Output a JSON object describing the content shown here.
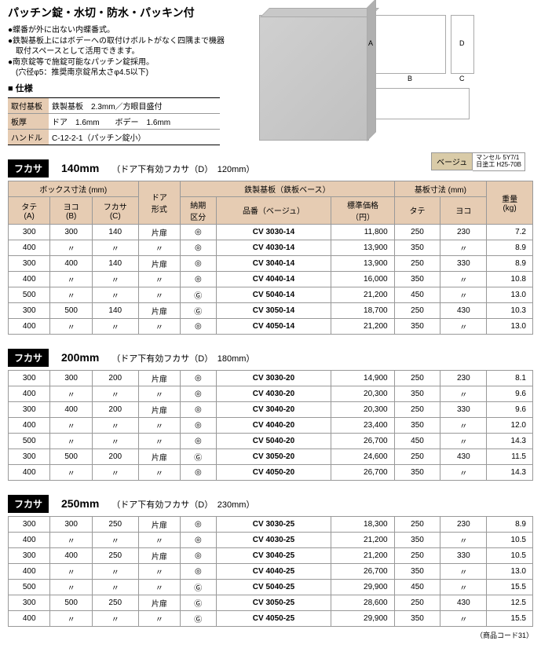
{
  "title": "パッチン錠・水切・防水・パッキン付",
  "bullets": [
    "●蝶番が外に出ない内蝶番式。",
    "●鉄製基板上にはボデーへの取付けボルトがなく四隅まで機器",
    "　取付スペースとして活用できます。",
    "●南京錠等で施錠可能なパッチン錠採用。",
    "　(穴径φ5：推奨南京錠吊太さφ4.5以下)"
  ],
  "shiyou": "■ 仕様",
  "spec_rows": [
    {
      "k": "取付基板",
      "v": "鉄製基板　2.3mm／方眼目盛付"
    },
    {
      "k": "板厚",
      "v": "ドア　1.6mm　　ボデー　1.6mm"
    },
    {
      "k": "ハンドル",
      "v": "C-12-2-1（パッチン錠小）"
    }
  ],
  "dim_labels": {
    "A": "A",
    "B": "B",
    "C": "C",
    "D": "D"
  },
  "beige": {
    "label": "ベージュ",
    "line1": "マンセル 5Y7/1",
    "line2": "日塗工 H25-70B"
  },
  "sections": [
    {
      "chip": "フカサ",
      "mm": "140mm",
      "sub": "（ドア下有効フカサ（D）　120mm）",
      "rows": [
        [
          "300",
          "300",
          "140",
          "片扉",
          "◎",
          "CV 3030-14",
          "11,800",
          "250",
          "230",
          "7.2"
        ],
        [
          "400",
          "〃",
          "〃",
          "〃",
          "◎",
          "CV 4030-14",
          "13,900",
          "350",
          "〃",
          "8.9"
        ],
        [
          "300",
          "400",
          "140",
          "片扉",
          "◎",
          "CV 3040-14",
          "13,900",
          "250",
          "330",
          "8.9"
        ],
        [
          "400",
          "〃",
          "〃",
          "〃",
          "◎",
          "CV 4040-14",
          "16,000",
          "350",
          "〃",
          "10.8"
        ],
        [
          "500",
          "〃",
          "〃",
          "〃",
          "Ⓖ",
          "CV 5040-14",
          "21,200",
          "450",
          "〃",
          "13.0"
        ],
        [
          "300",
          "500",
          "140",
          "片扉",
          "Ⓖ",
          "CV 3050-14",
          "18,700",
          "250",
          "430",
          "10.3"
        ],
        [
          "400",
          "〃",
          "〃",
          "〃",
          "◎",
          "CV 4050-14",
          "21,200",
          "350",
          "〃",
          "13.0"
        ]
      ]
    },
    {
      "chip": "フカサ",
      "mm": "200mm",
      "sub": "（ドア下有効フカサ（D）　180mm）",
      "rows": [
        [
          "300",
          "300",
          "200",
          "片扉",
          "◎",
          "CV 3030-20",
          "14,900",
          "250",
          "230",
          "8.1"
        ],
        [
          "400",
          "〃",
          "〃",
          "〃",
          "◎",
          "CV 4030-20",
          "20,300",
          "350",
          "〃",
          "9.6"
        ],
        [
          "300",
          "400",
          "200",
          "片扉",
          "◎",
          "CV 3040-20",
          "20,300",
          "250",
          "330",
          "9.6"
        ],
        [
          "400",
          "〃",
          "〃",
          "〃",
          "◎",
          "CV 4040-20",
          "23,400",
          "350",
          "〃",
          "12.0"
        ],
        [
          "500",
          "〃",
          "〃",
          "〃",
          "◎",
          "CV 5040-20",
          "26,700",
          "450",
          "〃",
          "14.3"
        ],
        [
          "300",
          "500",
          "200",
          "片扉",
          "Ⓖ",
          "CV 3050-20",
          "24,600",
          "250",
          "430",
          "11.5"
        ],
        [
          "400",
          "〃",
          "〃",
          "〃",
          "◎",
          "CV 4050-20",
          "26,700",
          "350",
          "〃",
          "14.3"
        ]
      ]
    },
    {
      "chip": "フカサ",
      "mm": "250mm",
      "sub": "（ドア下有効フカサ（D）　230mm）",
      "rows": [
        [
          "300",
          "300",
          "250",
          "片扉",
          "◎",
          "CV 3030-25",
          "18,300",
          "250",
          "230",
          "8.9"
        ],
        [
          "400",
          "〃",
          "〃",
          "〃",
          "◎",
          "CV 4030-25",
          "21,200",
          "350",
          "〃",
          "10.5"
        ],
        [
          "300",
          "400",
          "250",
          "片扉",
          "◎",
          "CV 3040-25",
          "21,200",
          "250",
          "330",
          "10.5"
        ],
        [
          "400",
          "〃",
          "〃",
          "〃",
          "◎",
          "CV 4040-25",
          "26,700",
          "350",
          "〃",
          "13.0"
        ],
        [
          "500",
          "〃",
          "〃",
          "〃",
          "Ⓖ",
          "CV 5040-25",
          "29,900",
          "450",
          "〃",
          "15.5"
        ],
        [
          "300",
          "500",
          "250",
          "片扉",
          "Ⓖ",
          "CV 3050-25",
          "28,600",
          "250",
          "430",
          "12.5"
        ],
        [
          "400",
          "〃",
          "〃",
          "〃",
          "Ⓖ",
          "CV 4050-25",
          "29,900",
          "350",
          "〃",
          "15.5"
        ]
      ]
    }
  ],
  "table_headers": {
    "group1": "ボックス寸法 (mm)",
    "tate": "タテ\n(A)",
    "yoko": "ヨコ\n(B)",
    "fukasa": "フカサ\n(C)",
    "door": "ドア\n形式",
    "group2": "鉄製基板（鉄板ベース）",
    "nouki": "納期\n区分",
    "hinban": "品番（ベージュ）",
    "kakaku": "標準価格\n（円）",
    "group3": "基板寸法 (mm)",
    "tate2": "タテ",
    "yoko2": "ヨコ",
    "weight": "重量\n(kg)"
  },
  "footer": "（商品コード31）",
  "colwidths": [
    "40",
    "40",
    "44",
    "40",
    "34",
    "110",
    "60",
    "44",
    "44",
    "44"
  ]
}
